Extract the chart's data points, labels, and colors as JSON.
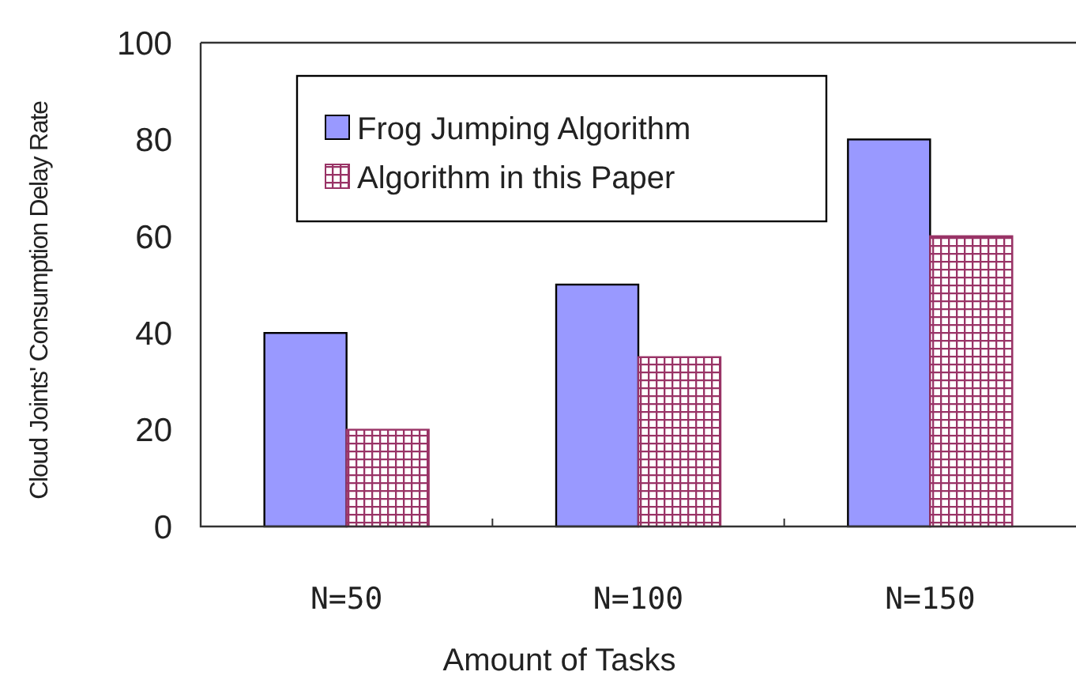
{
  "chart_data": {
    "type": "bar",
    "xlabel": "Amount of Tasks",
    "ylabel": "Cloud Joints' Consumption Delay Rate",
    "categories": [
      "N=50",
      "N=100",
      "N=150"
    ],
    "series": [
      {
        "name": "Frog Jumping Algorithm",
        "color": "#9999ff",
        "values": [
          40,
          50,
          80
        ]
      },
      {
        "name": "Algorithm in this Paper",
        "color": "#993366",
        "values": [
          20,
          35,
          60
        ]
      }
    ],
    "ylim": [
      0,
      100
    ],
    "yticks": [
      0,
      20,
      40,
      60,
      80,
      100
    ],
    "grid": false,
    "legend": "top left"
  }
}
